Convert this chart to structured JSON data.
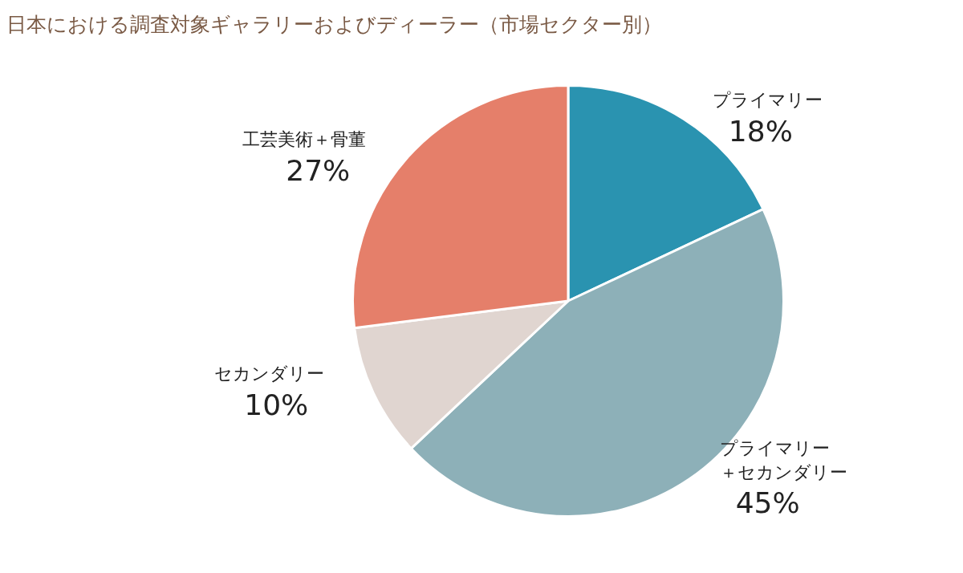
{
  "chart_data": {
    "type": "pie",
    "title": "日本における調査対象ギャラリーおよびディーラー（市場セクター別）",
    "categories": [
      "プライマリー",
      "プライマリー＋セカンダリー",
      "セカンダリー",
      "工芸美術＋骨董"
    ],
    "values": [
      18,
      45,
      10,
      27
    ],
    "colors": [
      "#2a93b0",
      "#8db0b8",
      "#e0d5d0",
      "#e57f6a"
    ],
    "value_labels": [
      "18%",
      "45%",
      "10%",
      "27%"
    ],
    "legend": false
  }
}
